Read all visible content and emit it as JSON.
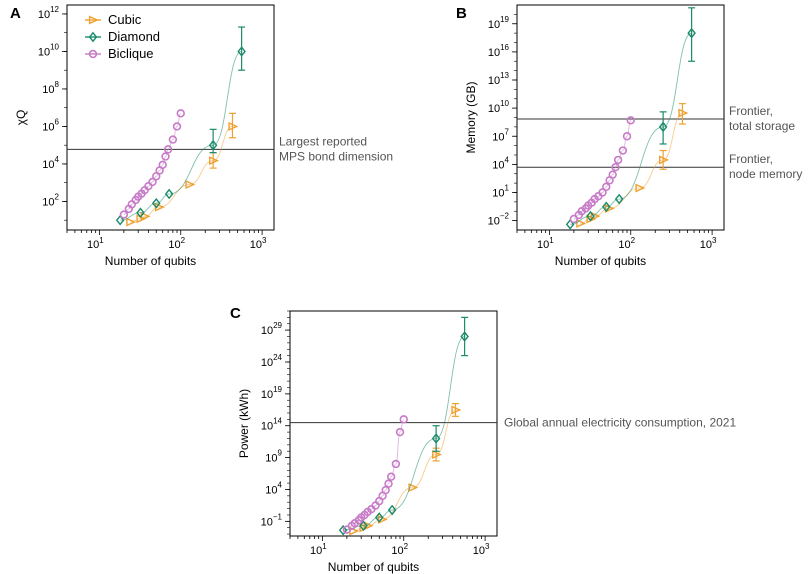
{
  "legend": [
    {
      "name": "Cubic",
      "color": "#F0A030",
      "marker": "triangle-right"
    },
    {
      "name": "Diamond",
      "color": "#1A8A6A",
      "marker": "diamond"
    },
    {
      "name": "Biclique",
      "color": "#C77AC7",
      "marker": "circle"
    }
  ],
  "chart_data": [
    {
      "panel": "A",
      "type": "scatter",
      "xscale": "log",
      "yscale": "log",
      "xlabel": "Number of qubits",
      "ylabel": "χQ",
      "xlim": [
        4,
        1400
      ],
      "ylim": [
        3,
        3000000000000.0
      ],
      "xticks": [
        10,
        100,
        1000
      ],
      "yticks": [
        100,
        10000,
        1000000,
        100000000,
        10000000000,
        1000000000000
      ],
      "hline": {
        "y": 60000,
        "label": "Largest reported\nMPS bond dimension"
      },
      "series": [
        {
          "name": "Cubic",
          "x": [
            24,
            32,
            36,
            54,
            128,
            250,
            432
          ],
          "y": [
            8,
            12,
            16,
            50,
            800,
            15000,
            1000000
          ],
          "err_lo": [
            null,
            null,
            null,
            null,
            null,
            6000,
            250000
          ],
          "err_hi": [
            null,
            null,
            null,
            null,
            null,
            40000,
            5000000
          ]
        },
        {
          "name": "Diamond",
          "x": [
            18,
            32,
            50,
            72,
            250,
            560
          ],
          "y": [
            10,
            25,
            80,
            250,
            100000,
            10000000000
          ],
          "err_lo": [
            null,
            null,
            null,
            null,
            40000,
            1000000000
          ],
          "err_hi": [
            null,
            null,
            null,
            null,
            700000,
            200000000000
          ]
        },
        {
          "name": "Biclique",
          "x": [
            20,
            23,
            25,
            28,
            30,
            33,
            36,
            40,
            45,
            50,
            55,
            60,
            65,
            70,
            80,
            90,
            100
          ],
          "y": [
            20,
            40,
            70,
            120,
            180,
            260,
            400,
            650,
            1100,
            2200,
            4500,
            9000,
            25000,
            60000,
            200000,
            1000000,
            5000000
          ]
        }
      ]
    },
    {
      "panel": "B",
      "type": "scatter",
      "xscale": "log",
      "yscale": "log",
      "xlabel": "Number of qubits",
      "ylabel": "Memory (GB)",
      "xlim": [
        4,
        1400
      ],
      "ylim": [
        0.001,
        1e+21
      ],
      "xticks": [
        10,
        100,
        1000
      ],
      "yticks": [
        0.01,
        10,
        10000,
        10000000,
        10000000000,
        10000000000000,
        10000000000000000,
        10000000000000000000
      ],
      "hlines": [
        {
          "y": 700000000,
          "label": "Frontier,\ntotal storage"
        },
        {
          "y": 5000,
          "label": "Frontier,\nnode memory"
        }
      ],
      "series": [
        {
          "name": "Cubic",
          "x": [
            24,
            32,
            36,
            54,
            128,
            250,
            432
          ],
          "y": [
            0.005,
            0.015,
            0.03,
            0.2,
            30,
            30000,
            3000000000
          ],
          "err_lo": [
            null,
            null,
            null,
            null,
            null,
            3000,
            200000000
          ],
          "err_hi": [
            null,
            null,
            null,
            null,
            null,
            300000,
            30000000000
          ]
        },
        {
          "name": "Diamond",
          "x": [
            18,
            32,
            50,
            72,
            250,
            560
          ],
          "y": [
            0.004,
            0.03,
            0.3,
            2,
            100000000,
            1e+18
          ],
          "err_lo": [
            null,
            null,
            null,
            null,
            1500000,
            1000000000000000.0
          ],
          "err_hi": [
            null,
            null,
            null,
            null,
            4000000000,
            5e+20
          ]
        },
        {
          "name": "Biclique",
          "x": [
            20,
            23,
            25,
            28,
            30,
            33,
            36,
            40,
            45,
            50,
            55,
            60,
            65,
            70,
            80,
            90,
            100
          ],
          "y": [
            0.015,
            0.04,
            0.1,
            0.2,
            0.4,
            0.8,
            2,
            4,
            10,
            40,
            200,
            800,
            5000,
            30000,
            300000,
            10000000,
            500000000
          ]
        }
      ]
    },
    {
      "panel": "C",
      "type": "scatter",
      "xscale": "log",
      "yscale": "log",
      "xlabel": "Number of qubits",
      "ylabel": "Power (kWh)",
      "xlim": [
        4,
        1400
      ],
      "ylim": [
        0.0005,
        1e+32
      ],
      "xticks": [
        10,
        100,
        1000
      ],
      "yticks": [
        0.1,
        10000,
        1000000000,
        100000000000000,
        1e+19,
        1e+24,
        1e+29
      ],
      "hline": {
        "y": 300000000000000,
        "label": "Global annual electricity consumption, 2021"
      },
      "series": [
        {
          "name": "Cubic",
          "x": [
            24,
            32,
            36,
            54,
            128,
            250,
            432
          ],
          "y": [
            0.003,
            0.01,
            0.02,
            0.2,
            20000,
            3000000000,
            3e+16
          ],
          "err_lo": [
            null,
            null,
            null,
            null,
            null,
            300000000,
            3000000000000000.0
          ],
          "err_hi": [
            null,
            null,
            null,
            null,
            null,
            30000000000,
            3e+17
          ]
        },
        {
          "name": "Diamond",
          "x": [
            18,
            32,
            50,
            72,
            250,
            560
          ],
          "y": [
            0.004,
            0.02,
            0.4,
            6,
            1000000000000,
            1e+28
          ],
          "err_lo": [
            null,
            null,
            null,
            null,
            10000000000,
            1e+25
          ],
          "err_hi": [
            null,
            null,
            null,
            null,
            100000000000000,
            1e+31
          ]
        },
        {
          "name": "Biclique",
          "x": [
            20,
            23,
            25,
            28,
            30,
            33,
            36,
            40,
            45,
            50,
            55,
            60,
            65,
            70,
            80,
            90,
            100
          ],
          "y": [
            0.005,
            0.02,
            0.05,
            0.15,
            0.4,
            1,
            3,
            8,
            30,
            150,
            1000,
            8000,
            80000,
            1000000,
            100000000,
            10000000000000,
            1000000000000000.0
          ]
        }
      ]
    }
  ]
}
